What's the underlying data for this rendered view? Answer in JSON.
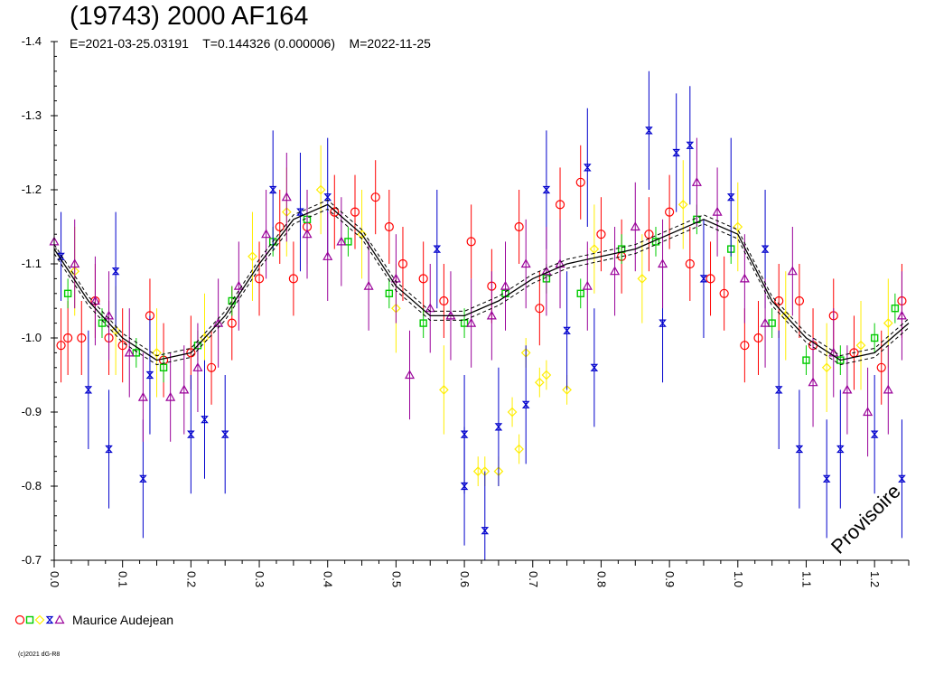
{
  "title": "(19743) 2000 AF164",
  "subtitle": "E=2021-03-25.03191    T=0.144326 (0.000006)    M=2022-11-25",
  "legend": {
    "observer": "Maurice Audejean"
  },
  "copyright": "(c)2021 dG-R8",
  "watermark": "Provisoire",
  "chart_data": {
    "type": "scatter",
    "title": "(19743) 2000 AF164",
    "xlabel": "",
    "ylabel": "",
    "xlim": [
      0.0,
      1.25
    ],
    "ylim": [
      -1.4,
      -0.7
    ],
    "y_inverted": true,
    "xticks": [
      0.0,
      0.1,
      0.2,
      0.3,
      0.4,
      0.5,
      0.6,
      0.7,
      0.8,
      0.9,
      1.0,
      1.1,
      1.2
    ],
    "xtick_labels": [
      "0.0",
      "0.1",
      "0.2",
      "0.3",
      "0.4",
      "0.5",
      "0.6",
      "0.7",
      "0.8",
      "0.9",
      "1.0",
      "1.1",
      "1.2"
    ],
    "yticks": [
      -1.4,
      -1.3,
      -1.2,
      -1.1,
      -1.0,
      -0.9,
      -0.8,
      -0.7
    ],
    "ytick_labels": [
      "-1.4",
      "-1.3",
      "-1.2",
      "-1.1",
      "-1.0",
      "-0.9",
      "-0.8",
      "-0.7"
    ],
    "grid": false,
    "legend_position": "bottom-left",
    "fit_curve": {
      "x": [
        0.0,
        0.05,
        0.1,
        0.15,
        0.2,
        0.25,
        0.3,
        0.35,
        0.4,
        0.45,
        0.5,
        0.55,
        0.6,
        0.65,
        0.7,
        0.75,
        0.8,
        0.85,
        0.9,
        0.95,
        1.0,
        1.05,
        1.1,
        1.15,
        1.2,
        1.25
      ],
      "y": [
        -1.12,
        -1.05,
        -1.0,
        -0.97,
        -0.98,
        -1.03,
        -1.1,
        -1.16,
        -1.18,
        -1.14,
        -1.07,
        -1.03,
        -1.03,
        -1.05,
        -1.08,
        -1.1,
        -1.11,
        -1.12,
        -1.14,
        -1.16,
        -1.14,
        -1.05,
        -1.0,
        -0.97,
        -0.98,
        -1.02
      ]
    },
    "series": [
      {
        "marker": "circle",
        "color": "#ff0000",
        "points": [
          [
            0.01,
            -0.99,
            0.05
          ],
          [
            0.02,
            -1.0,
            0.05
          ],
          [
            0.04,
            -1.0,
            0.05
          ],
          [
            0.06,
            -1.05,
            0.05
          ],
          [
            0.08,
            -1.0,
            0.05
          ],
          [
            0.1,
            -0.99,
            0.05
          ],
          [
            0.14,
            -1.03,
            0.05
          ],
          [
            0.16,
            -0.97,
            0.05
          ],
          [
            0.2,
            -0.98,
            0.05
          ],
          [
            0.23,
            -0.96,
            0.05
          ],
          [
            0.26,
            -1.02,
            0.05
          ],
          [
            0.3,
            -1.08,
            0.05
          ],
          [
            0.33,
            -1.15,
            0.05
          ],
          [
            0.35,
            -1.08,
            0.05
          ],
          [
            0.37,
            -1.15,
            0.05
          ],
          [
            0.41,
            -1.17,
            0.05
          ],
          [
            0.44,
            -1.17,
            0.05
          ],
          [
            0.47,
            -1.19,
            0.05
          ],
          [
            0.49,
            -1.15,
            0.05
          ],
          [
            0.51,
            -1.1,
            0.05
          ],
          [
            0.54,
            -1.08,
            0.05
          ],
          [
            0.57,
            -1.05,
            0.05
          ],
          [
            0.61,
            -1.13,
            0.05
          ],
          [
            0.64,
            -1.07,
            0.05
          ],
          [
            0.68,
            -1.15,
            0.05
          ],
          [
            0.71,
            -1.04,
            0.05
          ],
          [
            0.74,
            -1.18,
            0.05
          ],
          [
            0.77,
            -1.21,
            0.05
          ],
          [
            0.8,
            -1.14,
            0.05
          ],
          [
            0.83,
            -1.11,
            0.05
          ],
          [
            0.87,
            -1.14,
            0.05
          ],
          [
            0.9,
            -1.17,
            0.05
          ],
          [
            0.93,
            -1.1,
            0.05
          ],
          [
            0.96,
            -1.08,
            0.05
          ],
          [
            0.98,
            -1.06,
            0.05
          ],
          [
            1.01,
            -0.99,
            0.05
          ],
          [
            1.03,
            -1.0,
            0.05
          ],
          [
            1.06,
            -1.05,
            0.05
          ],
          [
            1.09,
            -1.05,
            0.05
          ],
          [
            1.11,
            -0.99,
            0.05
          ],
          [
            1.14,
            -1.03,
            0.05
          ],
          [
            1.17,
            -0.98,
            0.05
          ],
          [
            1.21,
            -0.96,
            0.05
          ],
          [
            1.24,
            -1.05,
            0.05
          ]
        ]
      },
      {
        "marker": "square",
        "color": "#00cc00",
        "points": [
          [
            0.02,
            -1.06,
            0.02
          ],
          [
            0.07,
            -1.02,
            0.02
          ],
          [
            0.12,
            -0.98,
            0.02
          ],
          [
            0.16,
            -0.96,
            0.02
          ],
          [
            0.21,
            -0.99,
            0.02
          ],
          [
            0.26,
            -1.05,
            0.02
          ],
          [
            0.32,
            -1.13,
            0.02
          ],
          [
            0.37,
            -1.16,
            0.02
          ],
          [
            0.43,
            -1.13,
            0.02
          ],
          [
            0.49,
            -1.06,
            0.02
          ],
          [
            0.54,
            -1.02,
            0.02
          ],
          [
            0.6,
            -1.02,
            0.02
          ],
          [
            0.66,
            -1.06,
            0.02
          ],
          [
            0.72,
            -1.08,
            0.02
          ],
          [
            0.77,
            -1.06,
            0.02
          ],
          [
            0.83,
            -1.12,
            0.02
          ],
          [
            0.88,
            -1.13,
            0.02
          ],
          [
            0.94,
            -1.16,
            0.02
          ],
          [
            0.99,
            -1.12,
            0.02
          ],
          [
            1.05,
            -1.02,
            0.02
          ],
          [
            1.1,
            -0.97,
            0.02
          ],
          [
            1.15,
            -0.97,
            0.02
          ],
          [
            1.2,
            -1.0,
            0.02
          ],
          [
            1.23,
            -1.04,
            0.02
          ]
        ]
      },
      {
        "marker": "diamond",
        "color": "#ffee00",
        "points": [
          [
            0.03,
            -1.09,
            0.06
          ],
          [
            0.09,
            -1.01,
            0.06
          ],
          [
            0.15,
            -0.98,
            0.06
          ],
          [
            0.22,
            -1.0,
            0.06
          ],
          [
            0.29,
            -1.11,
            0.06
          ],
          [
            0.34,
            -1.17,
            0.06
          ],
          [
            0.39,
            -1.2,
            0.06
          ],
          [
            0.45,
            -1.14,
            0.06
          ],
          [
            0.5,
            -1.04,
            0.06
          ],
          [
            0.57,
            -0.93,
            0.06
          ],
          [
            0.62,
            -0.82,
            0.02
          ],
          [
            0.63,
            -0.82,
            0.02
          ],
          [
            0.65,
            -0.82,
            0.02
          ],
          [
            0.67,
            -0.9,
            0.02
          ],
          [
            0.68,
            -0.85,
            0.02
          ],
          [
            0.69,
            -0.98,
            0.02
          ],
          [
            0.71,
            -0.94,
            0.02
          ],
          [
            0.72,
            -0.95,
            0.02
          ],
          [
            0.75,
            -0.93,
            0.02
          ],
          [
            0.79,
            -1.12,
            0.06
          ],
          [
            0.86,
            -1.08,
            0.06
          ],
          [
            0.92,
            -1.18,
            0.06
          ],
          [
            1.0,
            -1.15,
            0.06
          ],
          [
            1.07,
            -1.03,
            0.06
          ],
          [
            1.13,
            -0.96,
            0.06
          ],
          [
            1.18,
            -0.99,
            0.06
          ],
          [
            1.22,
            -1.02,
            0.06
          ]
        ]
      },
      {
        "marker": "hourglass",
        "color": "#0000cc",
        "points": [
          [
            0.01,
            -1.11,
            0.06
          ],
          [
            0.05,
            -0.93,
            0.08
          ],
          [
            0.08,
            -0.85,
            0.08
          ],
          [
            0.09,
            -1.09,
            0.08
          ],
          [
            0.13,
            -0.81,
            0.08
          ],
          [
            0.14,
            -0.95,
            0.08
          ],
          [
            0.2,
            -0.87,
            0.08
          ],
          [
            0.22,
            -0.89,
            0.08
          ],
          [
            0.25,
            -0.87,
            0.08
          ],
          [
            0.32,
            -1.2,
            0.08
          ],
          [
            0.36,
            -1.17,
            0.08
          ],
          [
            0.4,
            -1.19,
            0.08
          ],
          [
            0.56,
            -1.12,
            0.08
          ],
          [
            0.6,
            -0.87,
            0.08
          ],
          [
            0.6,
            -0.8,
            0.08
          ],
          [
            0.63,
            -0.74,
            0.08
          ],
          [
            0.65,
            -0.88,
            0.08
          ],
          [
            0.69,
            -0.91,
            0.08
          ],
          [
            0.72,
            -1.2,
            0.08
          ],
          [
            0.75,
            -1.01,
            0.08
          ],
          [
            0.78,
            -1.23,
            0.08
          ],
          [
            0.79,
            -0.96,
            0.08
          ],
          [
            0.87,
            -1.28,
            0.08
          ],
          [
            0.89,
            -1.02,
            0.08
          ],
          [
            0.91,
            -1.25,
            0.08
          ],
          [
            0.93,
            -1.26,
            0.08
          ],
          [
            0.95,
            -1.08,
            0.08
          ],
          [
            0.99,
            -1.19,
            0.08
          ],
          [
            1.04,
            -1.12,
            0.08
          ],
          [
            1.06,
            -0.93,
            0.08
          ],
          [
            1.09,
            -0.85,
            0.08
          ],
          [
            1.13,
            -0.81,
            0.08
          ],
          [
            1.15,
            -0.85,
            0.08
          ],
          [
            1.2,
            -0.87,
            0.08
          ],
          [
            1.24,
            -0.81,
            0.08
          ]
        ]
      },
      {
        "marker": "triangle",
        "color": "#990099",
        "points": [
          [
            0.0,
            -1.13,
            0.06
          ],
          [
            0.03,
            -1.1,
            0.06
          ],
          [
            0.06,
            -1.05,
            0.06
          ],
          [
            0.08,
            -1.03,
            0.06
          ],
          [
            0.11,
            -0.98,
            0.06
          ],
          [
            0.13,
            -0.92,
            0.06
          ],
          [
            0.17,
            -0.92,
            0.06
          ],
          [
            0.19,
            -0.93,
            0.06
          ],
          [
            0.21,
            -0.96,
            0.06
          ],
          [
            0.24,
            -1.02,
            0.06
          ],
          [
            0.27,
            -1.07,
            0.06
          ],
          [
            0.31,
            -1.14,
            0.06
          ],
          [
            0.34,
            -1.19,
            0.06
          ],
          [
            0.37,
            -1.14,
            0.06
          ],
          [
            0.4,
            -1.11,
            0.06
          ],
          [
            0.42,
            -1.13,
            0.06
          ],
          [
            0.46,
            -1.07,
            0.06
          ],
          [
            0.5,
            -1.08,
            0.06
          ],
          [
            0.52,
            -0.95,
            0.06
          ],
          [
            0.55,
            -1.04,
            0.06
          ],
          [
            0.58,
            -1.03,
            0.06
          ],
          [
            0.61,
            -1.02,
            0.06
          ],
          [
            0.64,
            -1.03,
            0.06
          ],
          [
            0.66,
            -1.07,
            0.06
          ],
          [
            0.69,
            -1.1,
            0.06
          ],
          [
            0.72,
            -1.09,
            0.06
          ],
          [
            0.74,
            -1.1,
            0.06
          ],
          [
            0.78,
            -1.07,
            0.06
          ],
          [
            0.82,
            -1.09,
            0.06
          ],
          [
            0.85,
            -1.15,
            0.06
          ],
          [
            0.89,
            -1.1,
            0.06
          ],
          [
            0.94,
            -1.21,
            0.06
          ],
          [
            0.97,
            -1.17,
            0.06
          ],
          [
            1.01,
            -1.08,
            0.06
          ],
          [
            1.04,
            -1.02,
            0.06
          ],
          [
            1.08,
            -1.09,
            0.06
          ],
          [
            1.11,
            -0.94,
            0.06
          ],
          [
            1.14,
            -0.98,
            0.06
          ],
          [
            1.16,
            -0.93,
            0.06
          ],
          [
            1.19,
            -0.9,
            0.06
          ],
          [
            1.22,
            -0.93,
            0.06
          ],
          [
            1.24,
            -1.03,
            0.06
          ]
        ]
      }
    ]
  }
}
